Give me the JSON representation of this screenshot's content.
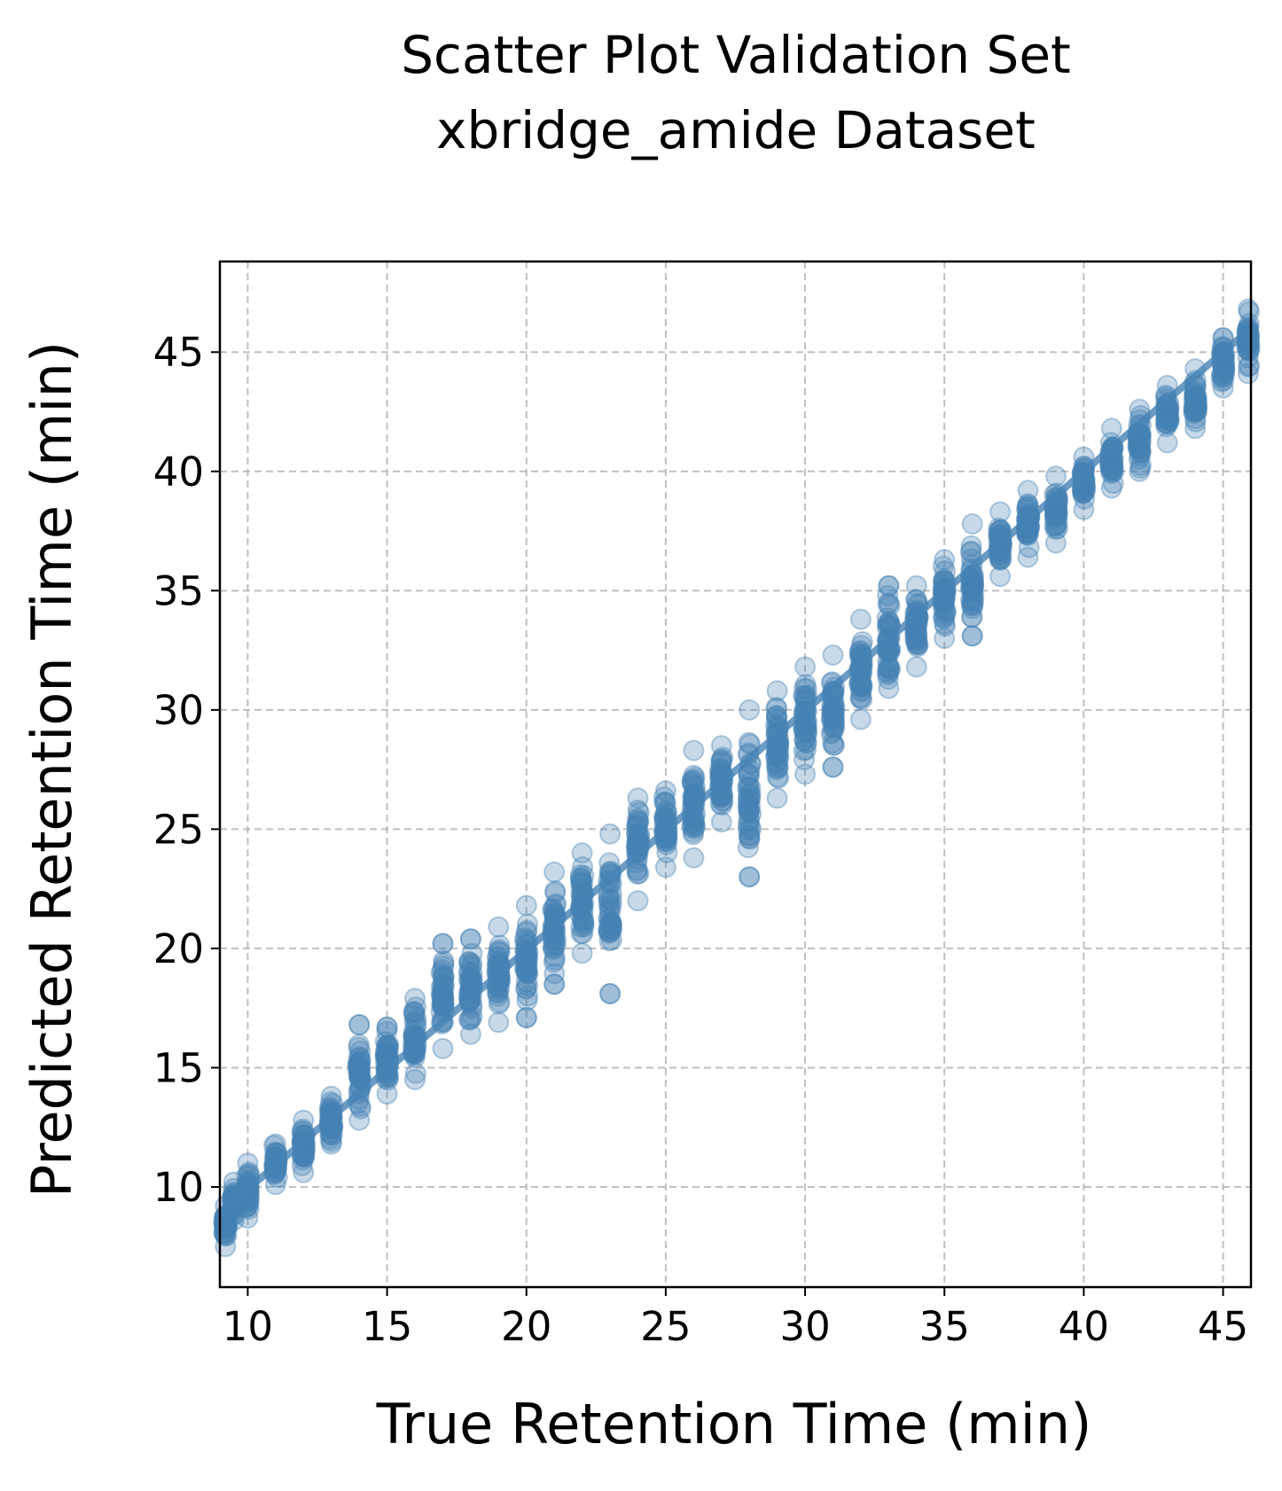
{
  "chart_data": {
    "type": "scatter",
    "title": [
      "Scatter Plot Validation Set",
      "xbridge_amide Dataset"
    ],
    "xlabel": "True Retention Time (min)",
    "ylabel": "Predicted Retention Time (min)",
    "xlim": [
      9.0,
      46.0
    ],
    "ylim": [
      5.8,
      48.8
    ],
    "xticks": [
      10,
      15,
      20,
      25,
      30,
      35,
      40,
      45
    ],
    "yticks": [
      10,
      15,
      20,
      25,
      30,
      35,
      40,
      45
    ],
    "grid": true,
    "point_color": "#4682b4",
    "point_alpha": 0.3,
    "fit_line": {
      "x": [
        9.0,
        46.0
      ],
      "y": [
        8.9,
        46.0
      ]
    },
    "series": [
      {
        "name": "validation",
        "x_clusters": [
          9.2,
          9.5,
          10,
          11,
          12,
          13,
          14,
          15,
          16,
          17,
          18,
          19,
          20,
          21,
          22,
          23,
          24,
          25,
          26,
          27,
          28,
          29,
          30,
          31,
          32,
          33,
          34,
          35,
          36,
          37,
          38,
          39,
          40,
          41,
          42,
          43,
          44,
          45,
          45.9
        ],
        "y_ranges": [
          [
            7.5,
            9.2
          ],
          [
            8.6,
            10.2
          ],
          [
            8.7,
            11.0
          ],
          [
            10.1,
            11.8
          ],
          [
            10.6,
            12.8
          ],
          [
            11.8,
            13.8
          ],
          [
            12.8,
            16.8
          ],
          [
            13.9,
            16.7
          ],
          [
            14.5,
            17.9
          ],
          [
            15.8,
            20.2
          ],
          [
            16.4,
            20.4
          ],
          [
            16.9,
            20.9
          ],
          [
            17.1,
            21.8
          ],
          [
            18.5,
            23.2
          ],
          [
            19.8,
            24.0
          ],
          [
            18.1,
            24.8
          ],
          [
            22.0,
            26.3
          ],
          [
            23.4,
            26.6
          ],
          [
            23.8,
            28.3
          ],
          [
            25.3,
            28.5
          ],
          [
            23.0,
            30.0
          ],
          [
            26.3,
            30.8
          ],
          [
            27.3,
            31.8
          ],
          [
            27.6,
            32.3
          ],
          [
            29.6,
            33.8
          ],
          [
            30.9,
            35.2
          ],
          [
            31.8,
            35.2
          ],
          [
            33.0,
            36.3
          ],
          [
            33.1,
            37.8
          ],
          [
            35.6,
            38.3
          ],
          [
            36.4,
            39.2
          ],
          [
            37.0,
            39.8
          ],
          [
            38.4,
            40.6
          ],
          [
            39.3,
            41.8
          ],
          [
            40.0,
            42.6
          ],
          [
            41.2,
            43.6
          ],
          [
            41.8,
            44.3
          ],
          [
            43.5,
            45.6
          ],
          [
            44.1,
            46.8
          ]
        ],
        "outliers": [
          [
            14,
            16.8
          ],
          [
            15,
            16.7
          ],
          [
            17,
            20.2
          ],
          [
            18,
            20.4
          ],
          [
            20,
            17.1
          ],
          [
            21,
            18.5
          ],
          [
            23,
            18.1
          ],
          [
            28,
            23.0
          ],
          [
            28,
            25.4
          ],
          [
            31,
            27.6
          ],
          [
            33,
            35.2
          ],
          [
            36,
            33.1
          ],
          [
            45,
            45.6
          ]
        ]
      }
    ]
  }
}
